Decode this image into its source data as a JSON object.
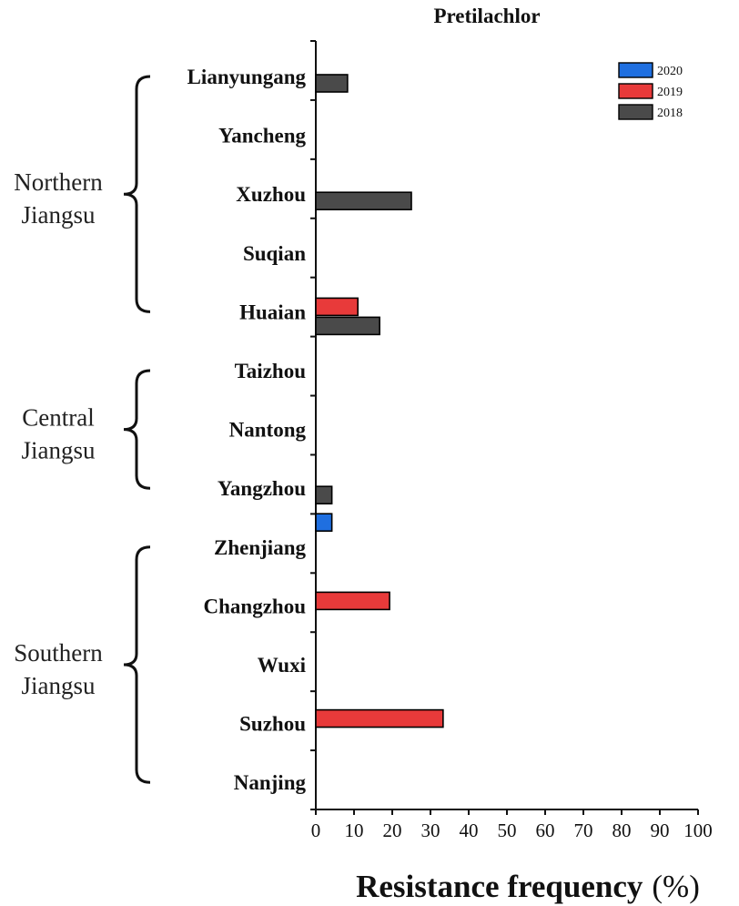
{
  "chart_data": {
    "type": "bar",
    "orientation": "horizontal",
    "title": "Pretilachlor",
    "xlabel": "Resistance frequency",
    "xlabel_unit": "(%)",
    "xlim": [
      0,
      100
    ],
    "xticks": [
      "0",
      "10",
      "20",
      "30",
      "40",
      "50",
      "60",
      "70",
      "80",
      "90",
      "100"
    ],
    "grid": false,
    "legend_position": "top-right",
    "categories": [
      "Lianyungang",
      "Yancheng",
      "Xuzhou",
      "Suqian",
      "Huaian",
      "Taizhou",
      "Nantong",
      "Yangzhou",
      "Zhenjiang",
      "Changzhou",
      "Wuxi",
      "Suzhou",
      "Nanjing"
    ],
    "series": [
      {
        "name": "2020",
        "color": "#1f6fe0",
        "values": [
          0,
          0,
          0,
          0,
          0,
          0,
          0,
          4.2,
          0,
          0,
          0,
          0,
          0
        ]
      },
      {
        "name": "2019",
        "color": "#e83a3a",
        "values": [
          0,
          0,
          0,
          0,
          11,
          0,
          0,
          0,
          0,
          19.3,
          0,
          33.3,
          0
        ]
      },
      {
        "name": "2018",
        "color": "#4a4a4a",
        "values": [
          8.3,
          0,
          25,
          0,
          16.7,
          0,
          0,
          4.2,
          0,
          0,
          0,
          0,
          0
        ]
      }
    ],
    "groups": [
      {
        "label_line1": "Northern",
        "label_line2": "Jiangsu",
        "first": 0,
        "last": 4
      },
      {
        "label_line1": "Central",
        "label_line2": "Jiangsu",
        "first": 5,
        "last": 7
      },
      {
        "label_line1": "Southern",
        "label_line2": "Jiangsu",
        "first": 8,
        "last": 12
      }
    ]
  }
}
